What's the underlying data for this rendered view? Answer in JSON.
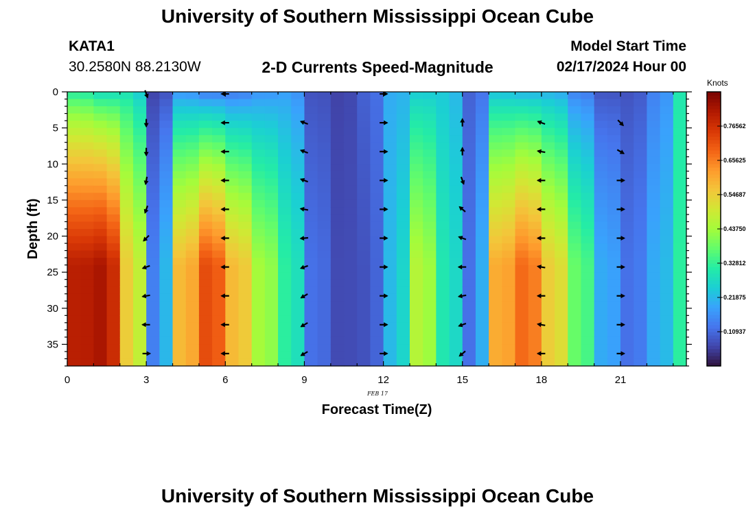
{
  "page": {
    "title_top": "University of Southern Mississippi Ocean Cube",
    "station_id": "KATA1",
    "station_coords": "30.2580N  88.2130W",
    "chart_subtitle": "2-D Currents Speed-Magnitude",
    "model_start_label": "Model Start Time",
    "model_start_value": "02/17/2024 Hour 00",
    "date_marker": "FEB 17",
    "title_bottom": "University of Southern Mississippi Ocean Cube"
  },
  "colors": {
    "colormap": [
      "#30123b",
      "#4145ab",
      "#4675ed",
      "#39a2fc",
      "#1bcfd4",
      "#24eca6",
      "#61fc6c",
      "#a4fc3b",
      "#d1e834",
      "#f3c63a",
      "#fe9b2d",
      "#f36315",
      "#d93806",
      "#b11901",
      "#7a0402"
    ],
    "arrow": "#000000"
  },
  "chart_data": {
    "type": "heatmap",
    "title": "2-D Currents Speed-Magnitude",
    "xlabel": "Forecast Time(Z)",
    "ylabel": "Depth (ft)",
    "xlim": [
      0,
      23.5
    ],
    "ylim": [
      0,
      38
    ],
    "y_inverted": true,
    "xticks": [
      0,
      3,
      6,
      9,
      12,
      15,
      18,
      21
    ],
    "yticks": [
      0,
      5,
      10,
      15,
      20,
      25,
      30,
      35
    ],
    "colorbar": {
      "label": "Knots",
      "range": [
        0,
        0.875
      ],
      "tick_values": [
        0.10937,
        0.21875,
        0.32812,
        0.4375,
        0.54687,
        0.65625,
        0.76562
      ],
      "tick_labels": [
        "0.10937",
        "0.21875",
        "0.32812",
        "0.43750",
        "0.54687",
        "0.65625",
        "0.76562"
      ]
    },
    "speed_profiles": [
      {
        "hour": 0,
        "surface": 0.3,
        "bottom": 0.8
      },
      {
        "hour": 1,
        "surface": 0.26,
        "bottom": 0.82
      },
      {
        "hour": 2,
        "surface": 0.28,
        "bottom": 0.55
      },
      {
        "hour": 3,
        "surface": 0.06,
        "bottom": 0.14
      },
      {
        "hour": 4,
        "surface": 0.16,
        "bottom": 0.58
      },
      {
        "hour": 5,
        "surface": 0.12,
        "bottom": 0.72
      },
      {
        "hour": 6,
        "surface": 0.12,
        "bottom": 0.58
      },
      {
        "hour": 7,
        "surface": 0.16,
        "bottom": 0.44
      },
      {
        "hour": 8,
        "surface": 0.18,
        "bottom": 0.32
      },
      {
        "hour": 9,
        "surface": 0.08,
        "bottom": 0.12
      },
      {
        "hour": 10,
        "surface": 0.06,
        "bottom": 0.07
      },
      {
        "hour": 11,
        "surface": 0.1,
        "bottom": 0.08
      },
      {
        "hour": 12,
        "surface": 0.2,
        "bottom": 0.22
      },
      {
        "hour": 13,
        "surface": 0.24,
        "bottom": 0.46
      },
      {
        "hour": 14,
        "surface": 0.24,
        "bottom": 0.3
      },
      {
        "hour": 15,
        "surface": 0.1,
        "bottom": 0.12
      },
      {
        "hour": 16,
        "surface": 0.22,
        "bottom": 0.6
      },
      {
        "hour": 17,
        "surface": 0.2,
        "bottom": 0.68
      },
      {
        "hour": 18,
        "surface": 0.2,
        "bottom": 0.55
      },
      {
        "hour": 19,
        "surface": 0.14,
        "bottom": 0.38
      },
      {
        "hour": 20,
        "surface": 0.08,
        "bottom": 0.2
      },
      {
        "hour": 21,
        "surface": 0.08,
        "bottom": 0.12
      },
      {
        "hour": 22,
        "surface": 0.14,
        "bottom": 0.2
      },
      {
        "hour": 23,
        "surface": 0.3,
        "bottom": 0.32
      }
    ],
    "vectors": [
      {
        "hour": 3,
        "depths": [
          0,
          4,
          8,
          12,
          16,
          20,
          24,
          28,
          32,
          36
        ],
        "directions_deg": [
          160,
          180,
          180,
          190,
          200,
          225,
          250,
          260,
          270,
          90
        ]
      },
      {
        "hour": 6,
        "depths": [
          0,
          4,
          8,
          12,
          16,
          20,
          24,
          28,
          32,
          36
        ],
        "directions_deg": [
          270,
          270,
          270,
          270,
          270,
          270,
          270,
          270,
          270,
          270
        ]
      },
      {
        "hour": 9,
        "depths": [
          4,
          8,
          12,
          16,
          20,
          24,
          28,
          32,
          36
        ],
        "directions_deg": [
          290,
          290,
          290,
          280,
          265,
          250,
          240,
          240,
          240
        ]
      },
      {
        "hour": 12,
        "depths": [
          0,
          4,
          8,
          12,
          16,
          20,
          24,
          28,
          32,
          36
        ],
        "directions_deg": [
          90,
          90,
          90,
          90,
          90,
          90,
          90,
          90,
          90,
          90
        ]
      },
      {
        "hour": 15,
        "depths": [
          4,
          8,
          12,
          16,
          20,
          24,
          28,
          32,
          36
        ],
        "directions_deg": [
          0,
          0,
          160,
          310,
          290,
          270,
          260,
          250,
          230
        ]
      },
      {
        "hour": 18,
        "depths": [
          4,
          8,
          12,
          16,
          20,
          24,
          28,
          32,
          36
        ],
        "directions_deg": [
          290,
          280,
          270,
          270,
          270,
          280,
          270,
          280,
          270
        ]
      },
      {
        "hour": 21,
        "depths": [
          4,
          8,
          12,
          16,
          20,
          24,
          28,
          32,
          36
        ],
        "directions_deg": [
          135,
          120,
          90,
          90,
          90,
          90,
          90,
          90,
          90
        ]
      }
    ]
  }
}
